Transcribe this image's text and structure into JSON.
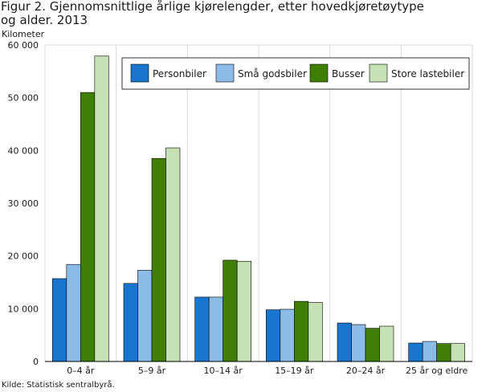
{
  "header": {
    "title_line1": "Figur 2. Gjennomsnittlige årlige kjørelengder, etter hovedkjøretøytype",
    "title_line2": "og alder. 2013",
    "unit": "Kilometer"
  },
  "footer": {
    "source": "Kilde: Statistisk sentralbyrå."
  },
  "chart_data": {
    "type": "bar",
    "title": "Figur 2. Gjennomsnittlige årlige kjørelengder, etter hovedkjøretøytype og alder. 2013",
    "ylabel": "Kilometer",
    "xlabel": "",
    "categories": [
      "0–4 år",
      "5–9 år",
      "10–14 år",
      "15–19 år",
      "20–24 år",
      "25 år og eldre"
    ],
    "series": [
      {
        "name": "Personbiler",
        "color": "#1a75cf",
        "values": [
          15700,
          14800,
          12200,
          9800,
          7300,
          3500
        ]
      },
      {
        "name": "Små godsbiler",
        "color": "#8cbbe8",
        "values": [
          18400,
          17300,
          12200,
          9900,
          7000,
          3800
        ]
      },
      {
        "name": "Busser",
        "color": "#3f7f06",
        "values": [
          51000,
          38500,
          19200,
          11400,
          6300,
          3400
        ]
      },
      {
        "name": "Store lastebiler",
        "color": "#c5e0b3",
        "values": [
          57900,
          40500,
          19000,
          11200,
          6700,
          3400
        ]
      }
    ],
    "ylim": [
      0,
      60000
    ],
    "yticks": [
      0,
      10000,
      20000,
      30000,
      40000,
      50000,
      60000
    ],
    "ytick_labels": [
      "0",
      "10 000",
      "20 000",
      "30 000",
      "40 000",
      "50 000",
      "60 000"
    ],
    "grid": "vertical separators between categories",
    "legend_position": "top-right"
  }
}
